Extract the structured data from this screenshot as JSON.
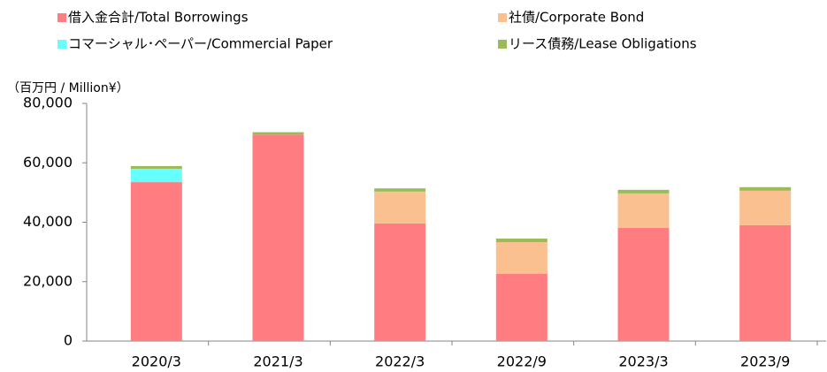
{
  "chart_data": {
    "type": "stacked_bar",
    "y_unit_label": "（百万円 / Million¥）",
    "categories": [
      "2020/3",
      "2021/3",
      "2022/3",
      "2022/9",
      "2023/3",
      "2023/9"
    ],
    "series": [
      {
        "name": "借入金合計/Total Borrowings",
        "color": "#ff7c80",
        "values": [
          53500,
          69500,
          39600,
          22600,
          38100,
          39000
        ]
      },
      {
        "name": "社債/Corporate Bond",
        "color": "#fac090",
        "values": [
          0,
          0,
          10700,
          10700,
          11600,
          11600
        ]
      },
      {
        "name": "コマーシャル･ペーパー/Commercial Paper",
        "color": "#66ffff",
        "values": [
          4500,
          0,
          0,
          0,
          0,
          0
        ]
      },
      {
        "name": "リース債務/Lease Obligations",
        "color": "#9bbb59",
        "values": [
          900,
          800,
          1100,
          1200,
          1200,
          1200
        ]
      }
    ],
    "ylim": [
      0,
      80000
    ],
    "yticks": [
      0,
      {
        "value": 20000,
        "label": "20,000"
      },
      {
        "value": 40000,
        "label": "40,000"
      },
      {
        "value": 60000,
        "label": "60,000"
      },
      {
        "value": 80000,
        "label": "80,000"
      }
    ],
    "grid": false
  }
}
